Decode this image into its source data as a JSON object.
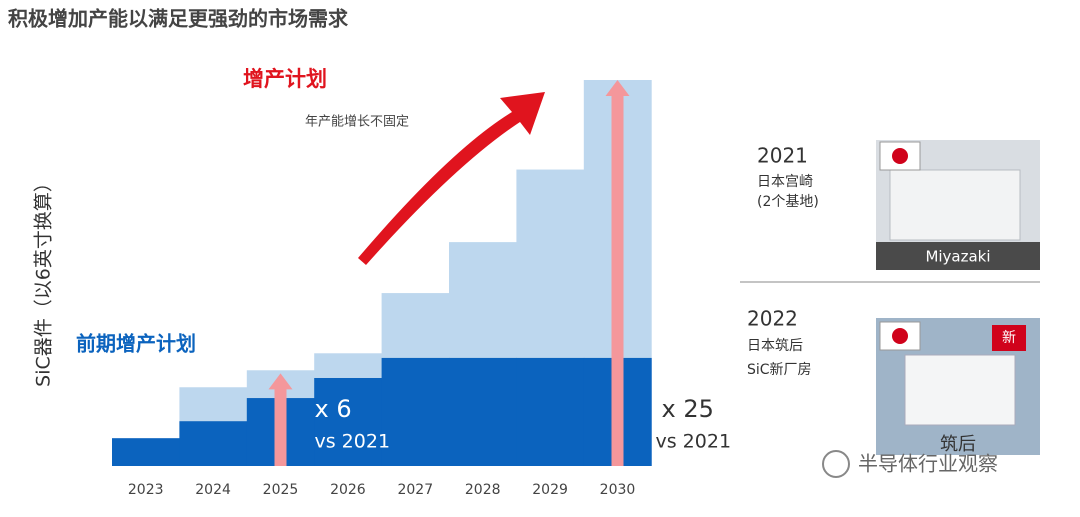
{
  "chart_data": {
    "type": "step-bar",
    "title": "积极增加产能以满足更强劲的市场需求",
    "y_label": "SiC器件（以6英寸换算）",
    "annotation": "年产能增长不固定",
    "categories": [
      "2023",
      "2024",
      "2025",
      "2026",
      "2027",
      "2028",
      "2029",
      "2030"
    ],
    "series": [
      {
        "name": "增产计划",
        "color": "#bdd7ee",
        "values": [
          1.8,
          5.1,
          6.2,
          7.3,
          11.2,
          14.5,
          19.2,
          25
        ]
      },
      {
        "name": "前期增产计划",
        "color": "#0b63be",
        "values": [
          1.8,
          2.9,
          4.4,
          5.7,
          7,
          7,
          7,
          7
        ]
      }
    ],
    "callouts": [
      {
        "category": "2025",
        "value": 6,
        "label": "x 6",
        "note": "vs 2021",
        "color": "#f4979b"
      },
      {
        "category": "2030",
        "value": 25,
        "label": "x 25",
        "note": "vs 2021",
        "color": "#f4979b"
      }
    ],
    "ylim": [
      0,
      25
    ]
  },
  "sites": [
    {
      "year": "2021",
      "place": "日本宫崎",
      "detail": "(2个基地)",
      "photo_label": "Miyazaki"
    },
    {
      "year": "2022",
      "place": "日本筑后",
      "detail": "SiC新厂房",
      "badge": "新",
      "photo_label": "筑后"
    }
  ],
  "watermark": "半导体行业观察"
}
